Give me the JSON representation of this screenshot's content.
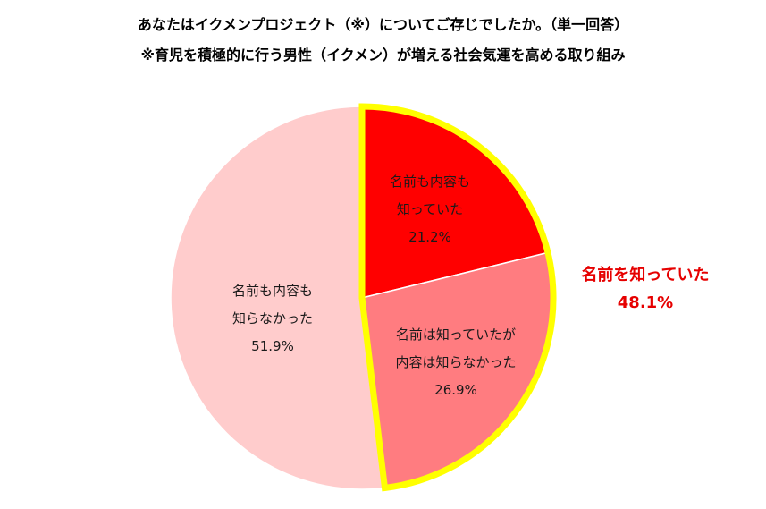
{
  "chart_data": {
    "type": "pie",
    "title": "あなたはイクメンプロジェクト（※）についてご存じでしたか。（単一回答）",
    "subtitle": "※育児を積極的に行う男性（イクメン）が増える社会気運を高める取り組み",
    "slices": [
      {
        "label_lines": [
          "名前も内容も",
          "知っていた",
          "21.2%"
        ],
        "value": 21.2,
        "color": "#ff0000"
      },
      {
        "label_lines": [
          "名前は知っていたが",
          "内容は知らなかった",
          "26.9%"
        ],
        "value": 26.9,
        "color": "#ff7c80"
      },
      {
        "label_lines": [
          "名前も内容も",
          "知らなかった",
          "51.9%"
        ],
        "value": 51.9,
        "color": "#ffcccc"
      }
    ],
    "highlight": {
      "label": "名前を知っていた",
      "value_text": "48.1%",
      "outline_color": "#ffff00",
      "text_color": "#e60000"
    }
  }
}
